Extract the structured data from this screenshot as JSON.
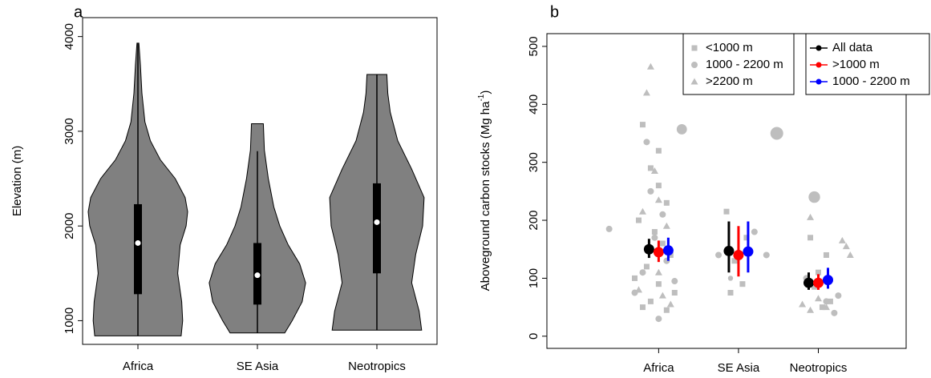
{
  "chart_data": [
    {
      "type": "violin",
      "title": "a",
      "ylabel": "Elevation (m)",
      "categories": [
        "Africa",
        "SE Asia",
        "Neotropics"
      ],
      "ylim": [
        750,
        4200
      ],
      "yticks": [
        1000,
        2000,
        3000,
        4000
      ],
      "color": "#808080",
      "whisker_low": [
        840,
        870,
        900
      ],
      "q1": [
        1280,
        1170,
        1500
      ],
      "median": [
        1820,
        1480,
        2040
      ],
      "q3": [
        2230,
        1820,
        2450
      ],
      "whisker_high": [
        3930,
        2790,
        3600
      ],
      "density_y": [
        [
          840,
          1000,
          1200,
          1500,
          1800,
          2000,
          2150,
          2300,
          2500,
          2700,
          2900,
          3100,
          3400,
          3700,
          3930
        ],
        [
          870,
          1000,
          1200,
          1400,
          1600,
          1800,
          2000,
          2200,
          2500,
          2800,
          3080
        ],
        [
          900,
          1100,
          1400,
          1700,
          2000,
          2300,
          2600,
          2900,
          3200,
          3400,
          3600
        ]
      ],
      "density": [
        [
          0.87,
          0.9,
          0.88,
          0.8,
          0.85,
          0.97,
          1.0,
          0.95,
          0.75,
          0.45,
          0.25,
          0.14,
          0.08,
          0.05,
          0.02
        ],
        [
          0.55,
          0.7,
          0.9,
          0.97,
          0.85,
          0.62,
          0.45,
          0.33,
          0.22,
          0.14,
          0.12
        ],
        [
          0.9,
          0.85,
          0.7,
          0.78,
          0.92,
          0.95,
          0.7,
          0.42,
          0.27,
          0.22,
          0.2
        ]
      ]
    },
    {
      "type": "scatter_means",
      "title": "b",
      "ylabel": "Aboveground carbon stocks (Mg ha",
      "ylabel_sup": "-1",
      "ylabel_end": ")",
      "categories": [
        "Africa",
        "SE Asia",
        "Neotropics"
      ],
      "category_x": [
        1,
        2,
        3
      ],
      "xlim": [
        -0.4,
        4.1
      ],
      "ylim": [
        -21,
        522
      ],
      "yticks": [
        0,
        100,
        200,
        300,
        400,
        500
      ],
      "points": [
        {
          "name": "<1000 m",
          "shape": "square",
          "color": "#bebebe",
          "x": [
            0.8,
            0.9,
            1.0,
            1.1,
            0.75,
            0.95,
            1.05,
            1.15,
            0.85,
            0.7,
            1.0,
            1.2,
            0.9,
            0.8,
            1.1,
            1.0,
            1.85,
            2.1,
            1.95,
            2.05,
            1.9,
            2.9,
            3.1,
            3.0,
            2.95,
            3.15,
            3.05
          ],
          "y": [
            365,
            290,
            260,
            230,
            200,
            180,
            160,
            140,
            120,
            100,
            90,
            75,
            60,
            50,
            45,
            320,
            215,
            170,
            130,
            90,
            75,
            170,
            140,
            110,
            85,
            60,
            50
          ]
        },
        {
          "name": "1000 - 2200 m",
          "shape": "circle",
          "color": "#bebebe",
          "x": [
            0.38,
            0.85,
            1.29,
            0.9,
            1.05,
            0.95,
            1.1,
            0.8,
            1.2,
            1.0,
            0.7,
            1.75,
            2.48,
            2.2,
            2.35,
            1.9,
            2.95,
            3.2,
            3.1,
            2.85,
            3.25
          ],
          "y": [
            185,
            335,
            357,
            250,
            210,
            170,
            130,
            110,
            95,
            30,
            75,
            140,
            350,
            180,
            140,
            100,
            240,
            40,
            60,
            100,
            70
          ],
          "sizes": [
            1,
            1,
            1.6,
            1,
            1,
            1,
            1,
            1,
            1,
            1,
            1,
            1,
            2,
            1,
            1,
            0.8,
            1.8,
            1,
            1,
            1,
            1
          ]
        },
        {
          "name": ">2200 m",
          "shape": "triangle",
          "color": "#bebebe",
          "x": [
            0.9,
            0.85,
            0.95,
            1.0,
            0.8,
            1.1,
            0.9,
            1.0,
            0.75,
            1.15,
            1.05,
            2.9,
            3.3,
            3.35,
            3.0,
            2.8,
            2.9,
            3.1,
            3.4
          ],
          "y": [
            465,
            420,
            285,
            235,
            215,
            190,
            150,
            110,
            80,
            55,
            70,
            205,
            165,
            155,
            65,
            55,
            45,
            50,
            140
          ]
        }
      ],
      "series": [
        {
          "name": "All data",
          "color": "#000000",
          "values": [
            150,
            147,
            92
          ],
          "lower": [
            135,
            110,
            80
          ],
          "upper": [
            168,
            198,
            110
          ]
        },
        {
          "name": ">1000 m",
          "color": "#ff0000",
          "values": [
            145,
            140,
            92
          ],
          "lower": [
            128,
            103,
            80
          ],
          "upper": [
            165,
            190,
            107
          ]
        },
        {
          "name": "1000 - 2200 m",
          "color": "#0000ff",
          "values": [
            148,
            146,
            97
          ],
          "lower": [
            130,
            110,
            82
          ],
          "upper": [
            170,
            198,
            118
          ]
        }
      ]
    }
  ]
}
